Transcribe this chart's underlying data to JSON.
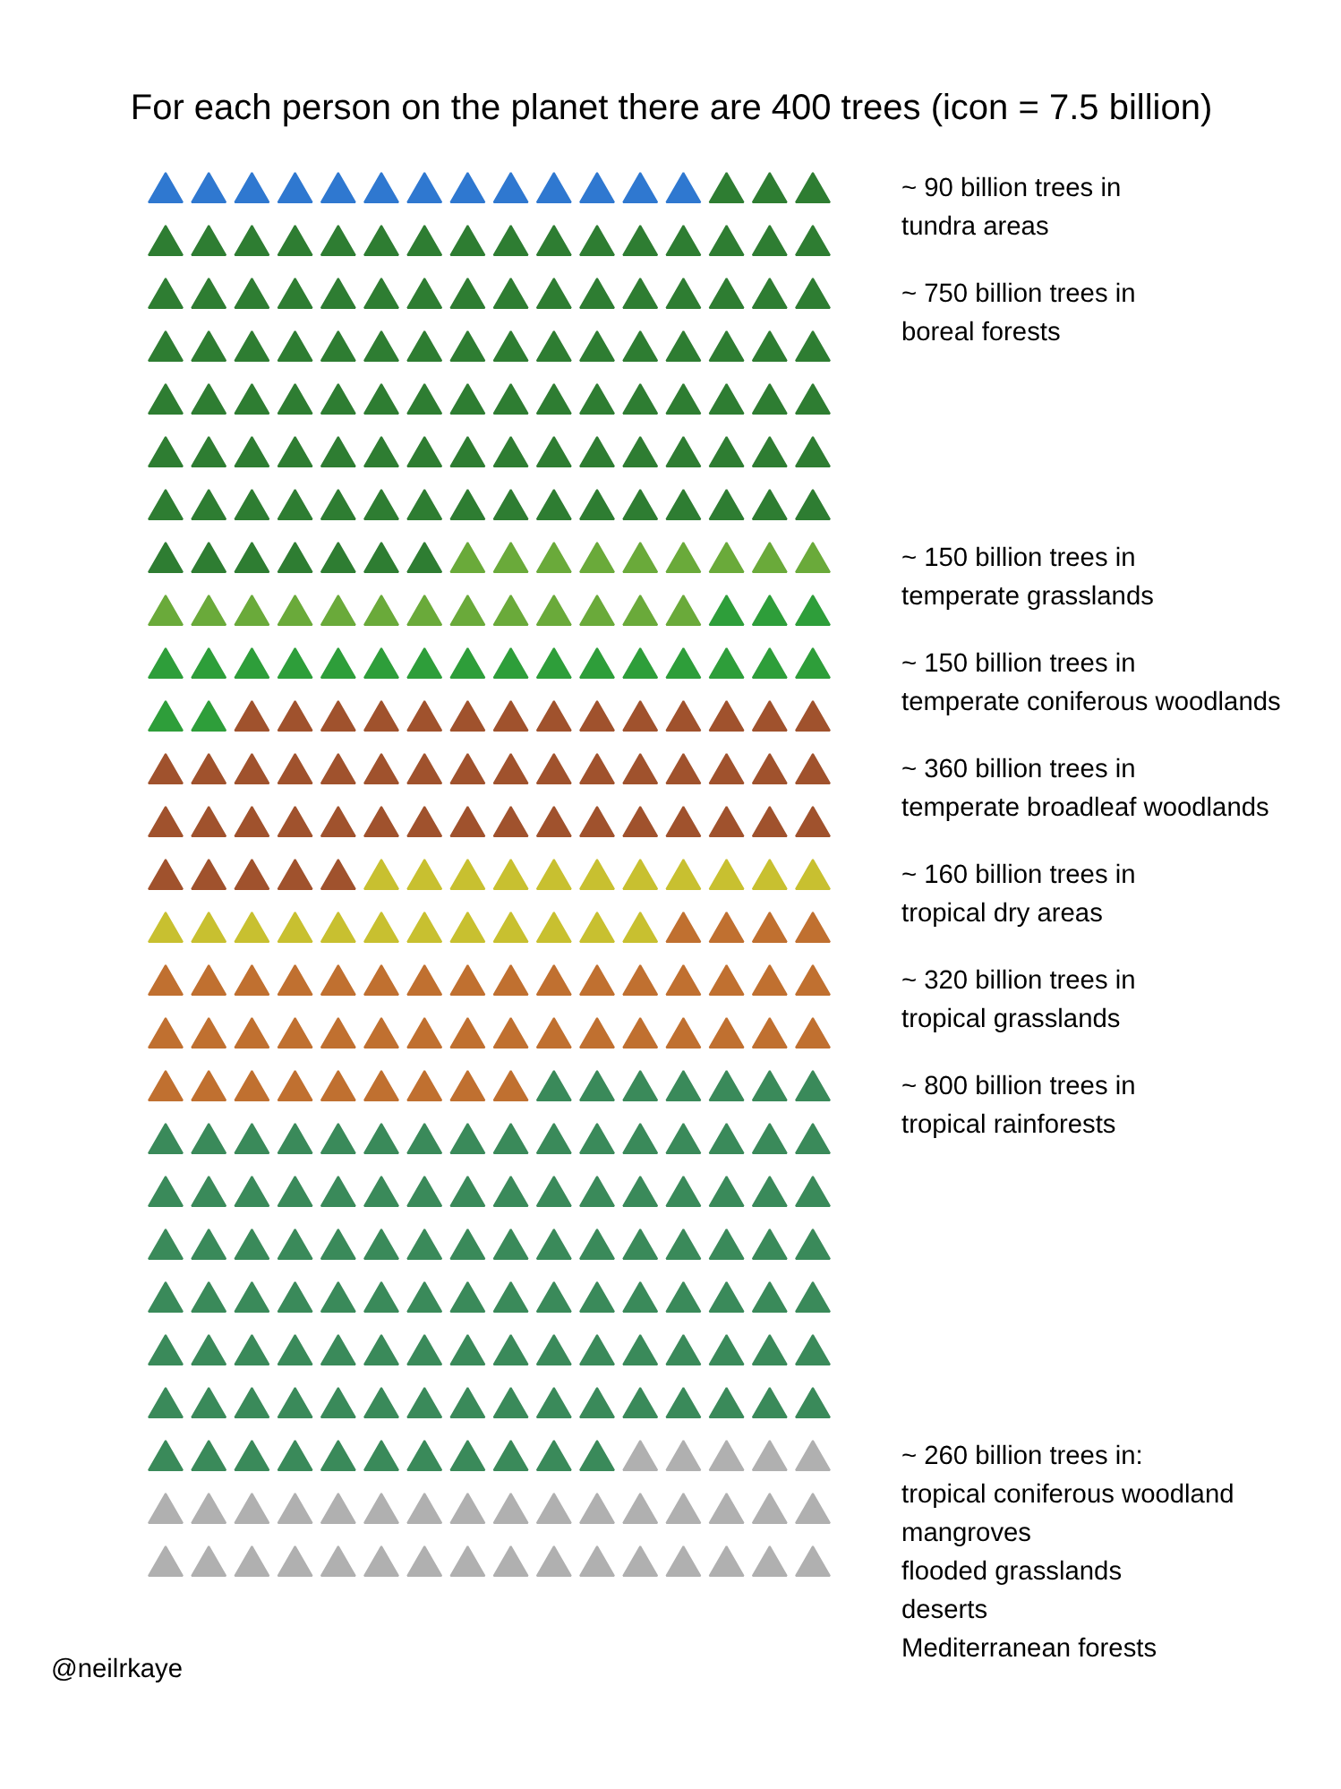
{
  "chart_data": {
    "type": "other",
    "title": "For each person on the planet there are 400 trees (icon = 7.5 billion)",
    "categories": [
      "tundra areas",
      "boreal forests",
      "temperate grasslands",
      "temperate coniferous woodlands",
      "temperate broadleaf woodlands",
      "tropical dry areas",
      "tropical grasslands",
      "tropical rainforests",
      "tropical coniferous woodland\nmangroves\nflooded grasslands\ndeserts\nMediterranean forests"
    ],
    "values": [
      90,
      750,
      150,
      150,
      360,
      160,
      320,
      800,
      260
    ],
    "value_labels": [
      "~ 90 billion trees in",
      "~ 750 billion trees in",
      "~ 150 billion trees in",
      "~ 150 billion trees in",
      "~ 360 billion trees in",
      "~ 160 billion trees in",
      "~ 320 billion trees in",
      "~ 800 billion trees in",
      "~ 260 billion trees in:"
    ],
    "colors": [
      "#2f78d0",
      "#2e7d32",
      "#6aaa3a",
      "#2e9e3a",
      "#a0522d",
      "#c8c030",
      "#c07030",
      "#3a8a5a",
      "#b0b0b0"
    ],
    "annotations": [
      "@neilrkaye"
    ]
  }
}
